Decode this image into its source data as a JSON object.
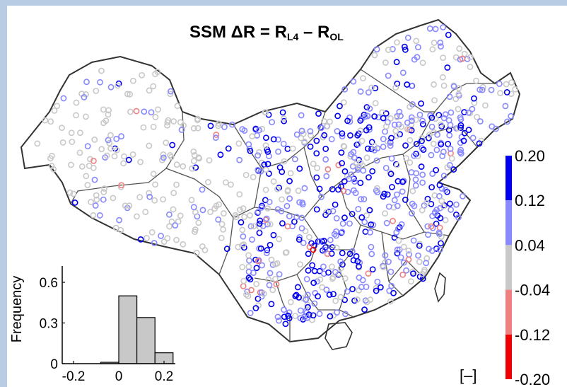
{
  "chart_data": [
    {
      "type": "map",
      "title": {
        "prefix": "SSM ΔR = R",
        "sub1": "L4",
        "mid": " – R",
        "sub2": "OL"
      },
      "unit_label": "[–]",
      "colorbar": {
        "ticks": [
          "0.20",
          "0.12",
          "0.04",
          "-0.04",
          "-0.12",
          "-0.20"
        ],
        "bins": [
          {
            "from": 0.12,
            "to": 0.2,
            "color": "#0000ee"
          },
          {
            "from": 0.04,
            "to": 0.12,
            "color": "#8888ff"
          },
          {
            "from": -0.04,
            "to": 0.04,
            "color": "#c8c8c8"
          },
          {
            "from": -0.12,
            "to": -0.04,
            "color": "#f08080"
          },
          {
            "from": -0.2,
            "to": -0.12,
            "color": "#ee0000"
          }
        ]
      }
    },
    {
      "type": "bar",
      "ylabel": "Frequency",
      "x_ticks": [
        "-0.2",
        "0",
        "0.2"
      ],
      "y_ticks": [
        "0",
        "0.3",
        "0.6"
      ],
      "xlim": [
        -0.25,
        0.25
      ],
      "ylim": [
        0,
        0.72
      ],
      "bins": [
        {
          "from": -0.08,
          "to": 0.0,
          "value": 0.01
        },
        {
          "from": 0.0,
          "to": 0.08,
          "value": 0.5
        },
        {
          "from": 0.08,
          "to": 0.16,
          "value": 0.34
        },
        {
          "from": 0.16,
          "to": 0.24,
          "value": 0.08
        }
      ]
    }
  ]
}
